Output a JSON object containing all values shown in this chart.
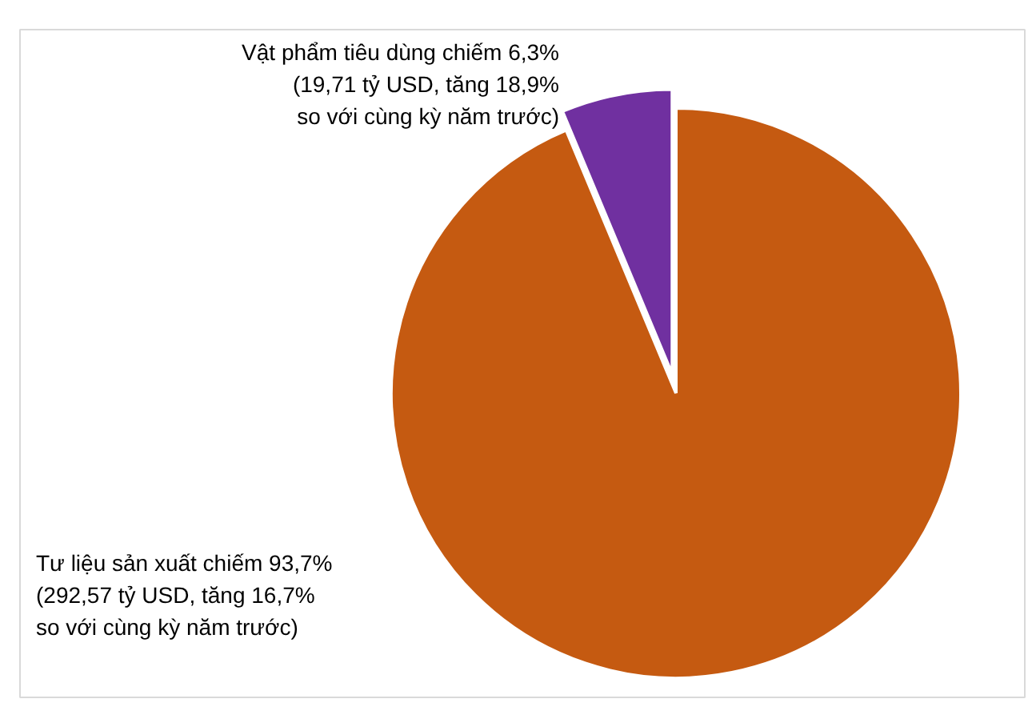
{
  "chart_data": {
    "type": "pie",
    "categories": [
      "Vật phẩm tiêu dùng chiếm 6,3%\n(19,71 tỷ USD, tăng 18,9%\nso với cùng kỳ năm trước)",
      "Tư liệu sản xuất chiếm 93,7%\n(292,57 tỷ USD, tăng 16,7%\nso với cùng kỳ năm trước)"
    ],
    "values": [
      6.3,
      93.7
    ],
    "colors": [
      "#7030a0",
      "#c55a11"
    ]
  }
}
